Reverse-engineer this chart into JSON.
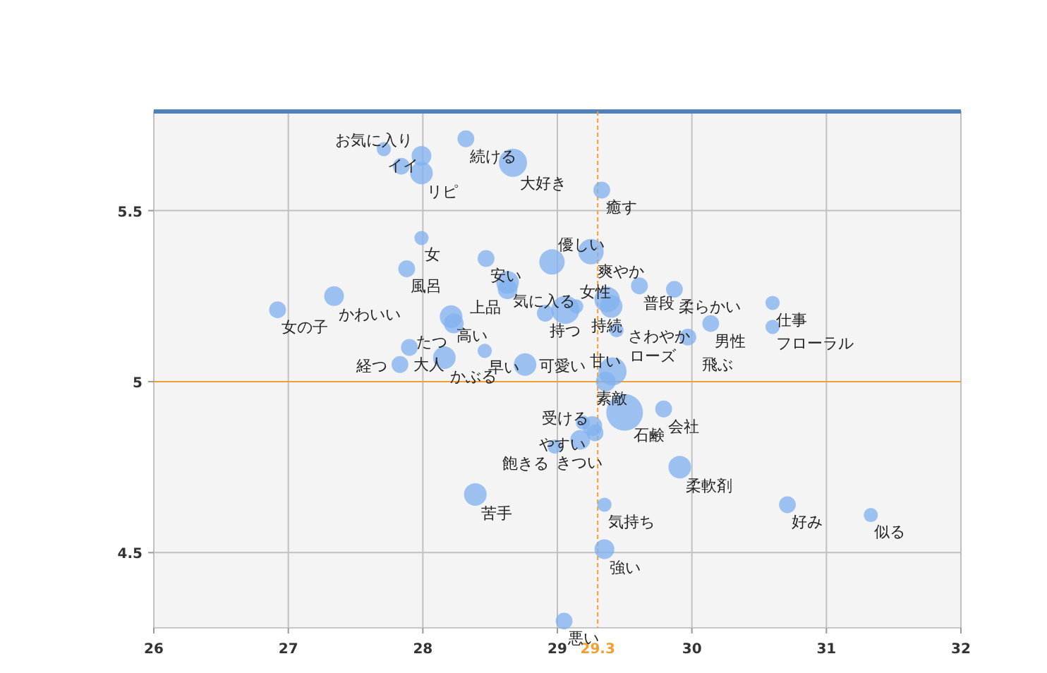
{
  "chart_data": {
    "type": "bubble",
    "x": [
      27.71,
      27.99,
      27.84,
      27.99,
      28.32,
      28.67,
      29.33,
      27.99,
      28.47,
      27.88,
      28.63,
      28.63,
      27.34,
      26.92,
      28.21,
      28.23,
      28.96,
      29.25,
      29.61,
      29.87,
      30.6,
      30.6,
      30.14,
      29.97,
      29.37,
      29.14,
      29.06,
      28.91,
      29.44,
      29.4,
      27.9,
      27.83,
      28.16,
      28.46,
      28.76,
      29.41,
      29.36,
      29.5,
      29.79,
      29.26,
      29.19,
      29.28,
      29.17,
      28.98,
      28.39,
      29.91,
      29.35,
      30.71,
      31.33,
      29.35,
      29.05
    ],
    "values": [
      5.68,
      5.66,
      5.63,
      5.61,
      5.71,
      5.64,
      5.56,
      5.42,
      5.36,
      5.33,
      5.29,
      5.27,
      5.25,
      5.21,
      5.19,
      5.17,
      5.35,
      5.38,
      5.28,
      5.27,
      5.23,
      5.16,
      5.17,
      5.13,
      5.24,
      5.22,
      5.21,
      5.2,
      5.15,
      5.22,
      5.1,
      5.05,
      5.07,
      5.09,
      5.05,
      5.03,
      5.0,
      4.91,
      4.92,
      4.87,
      4.88,
      4.85,
      4.83,
      4.81,
      4.67,
      4.75,
      4.64,
      4.64,
      4.61,
      4.51,
      4.3
    ],
    "sizes": [
      0.15,
      0.29,
      0.21,
      0.38,
      0.21,
      0.59,
      0.21,
      0.15,
      0.21,
      0.21,
      0.38,
      0.29,
      0.29,
      0.21,
      0.38,
      0.29,
      0.48,
      0.48,
      0.21,
      0.21,
      0.15,
      0.15,
      0.21,
      0.21,
      0.48,
      0.15,
      0.59,
      0.21,
      0.15,
      0.38,
      0.21,
      0.21,
      0.38,
      0.15,
      0.38,
      0.59,
      0.29,
      1,
      0.21,
      0.29,
      0.15,
      0.21,
      0.29,
      0.15,
      0.38,
      0.38,
      0.15,
      0.21,
      0.15,
      0.29,
      0.21
    ],
    "value_labels": [
      "イイ",
      "お気に入り",
      null,
      "リピ",
      "続ける",
      "大好き",
      "癒す",
      "女",
      "安い",
      "風呂",
      "気に入る",
      "上品",
      "かわいい",
      "女の子",
      "高い",
      "たつ",
      "優しい",
      "爽やか",
      "普段",
      "柔らかい",
      "仕事",
      "フローラル",
      "男性",
      "飛ぶ",
      "持続",
      "女性",
      null,
      "持つ",
      "ローズ",
      "さわやか",
      "大人",
      "経つ",
      "かぶる",
      "早い",
      "可愛い",
      "素敵",
      "甘い",
      "石鹸",
      "会社",
      "やすい",
      null,
      "受ける",
      "きつい",
      "飽きる",
      "苦手",
      "柔軟剤",
      "気持ち",
      "好み",
      "似る",
      "強い",
      "悪い"
    ],
    "color": "#7fb0ef",
    "xlim": [
      26,
      32
    ],
    "ylim": [
      4.28,
      5.79
    ],
    "xticks": [
      26,
      27,
      28,
      29,
      30,
      31,
      32
    ],
    "yticks": [
      4.5,
      5,
      5.5
    ],
    "grid": true,
    "ref_lines": [
      {
        "axis": "x",
        "value": 29.3,
        "label": "29.3",
        "color": "#f0a030",
        "line_style": "dashed"
      },
      {
        "axis": "y",
        "value": 5,
        "color": "#f0a030",
        "line_style": "solid"
      }
    ]
  }
}
